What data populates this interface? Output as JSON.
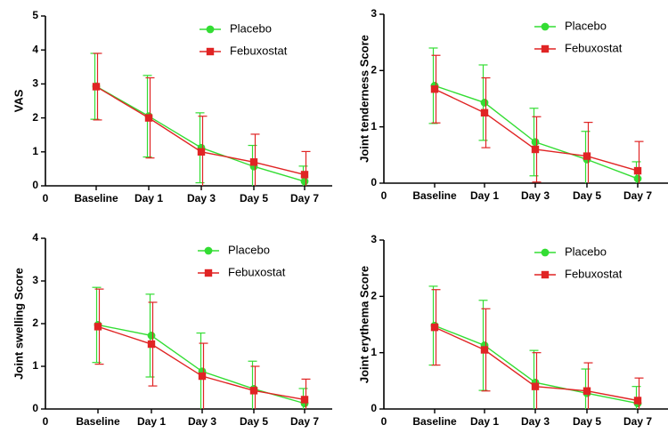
{
  "colors": {
    "placebo": "#33dd33",
    "febuxostat": "#e02424",
    "axis": "#000000"
  },
  "chart_data": [
    {
      "type": "line",
      "ylabel": "VAS",
      "ylim": [
        0,
        5
      ],
      "yticks": [
        "0",
        "1",
        "2",
        "3",
        "4",
        "5"
      ],
      "x_origin_label": "0",
      "categories": [
        "Baseline",
        "Day 1",
        "Day 3",
        "Day 5",
        "Day 7"
      ],
      "legend": "top-right",
      "series": [
        {
          "name": "Placebo",
          "marker": "circle",
          "values": [
            2.93,
            2.05,
            1.12,
            0.57,
            0.13
          ],
          "errors": [
            0.97,
            1.2,
            1.03,
            0.62,
            0.45
          ]
        },
        {
          "name": "Febuxostat",
          "marker": "square",
          "values": [
            2.92,
            2.0,
            1.0,
            0.7,
            0.33
          ],
          "errors": [
            0.98,
            1.18,
            1.05,
            0.82,
            0.68
          ]
        }
      ]
    },
    {
      "type": "line",
      "ylabel": "Joint tenderness Score",
      "ylim": [
        0,
        3
      ],
      "yticks": [
        "0",
        "1",
        "2",
        "3"
      ],
      "x_origin_label": "0",
      "categories": [
        "Baseline",
        "Day 1",
        "Day 3",
        "Day 5",
        "Day 7"
      ],
      "legend": "top-right",
      "series": [
        {
          "name": "Placebo",
          "marker": "circle",
          "values": [
            1.73,
            1.43,
            0.73,
            0.42,
            0.08
          ],
          "errors": [
            0.67,
            0.67,
            0.6,
            0.5,
            0.3
          ]
        },
        {
          "name": "Febuxostat",
          "marker": "square",
          "values": [
            1.67,
            1.25,
            0.6,
            0.48,
            0.22
          ],
          "errors": [
            0.6,
            0.62,
            0.58,
            0.6,
            0.52
          ]
        }
      ]
    },
    {
      "type": "line",
      "ylabel": "Joint swelling Score",
      "ylim": [
        0,
        4
      ],
      "yticks": [
        "0",
        "1",
        "2",
        "3",
        "4"
      ],
      "x_origin_label": "0",
      "categories": [
        "Baseline",
        "Day 1",
        "Day 3",
        "Day 5",
        "Day 7"
      ],
      "legend": "top-right",
      "series": [
        {
          "name": "Placebo",
          "marker": "circle",
          "values": [
            1.97,
            1.72,
            0.88,
            0.47,
            0.13
          ],
          "errors": [
            0.88,
            0.97,
            0.9,
            0.65,
            0.35
          ]
        },
        {
          "name": "Febuxostat",
          "marker": "square",
          "values": [
            1.93,
            1.52,
            0.77,
            0.43,
            0.22
          ],
          "errors": [
            0.88,
            0.98,
            0.77,
            0.57,
            0.48
          ]
        }
      ]
    },
    {
      "type": "line",
      "ylabel": "Joint erythema Score",
      "ylim": [
        0,
        3
      ],
      "yticks": [
        "0",
        "1",
        "2",
        "3"
      ],
      "x_origin_label": "0",
      "categories": [
        "Baseline",
        "Day 1",
        "Day 3",
        "Day 5",
        "Day 7"
      ],
      "legend": "top-right",
      "series": [
        {
          "name": "Placebo",
          "marker": "circle",
          "values": [
            1.48,
            1.13,
            0.47,
            0.28,
            0.1
          ],
          "errors": [
            0.7,
            0.8,
            0.57,
            0.43,
            0.3
          ]
        },
        {
          "name": "Febuxostat",
          "marker": "square",
          "values": [
            1.45,
            1.05,
            0.4,
            0.32,
            0.15
          ],
          "errors": [
            0.67,
            0.73,
            0.6,
            0.5,
            0.4
          ]
        }
      ]
    }
  ]
}
